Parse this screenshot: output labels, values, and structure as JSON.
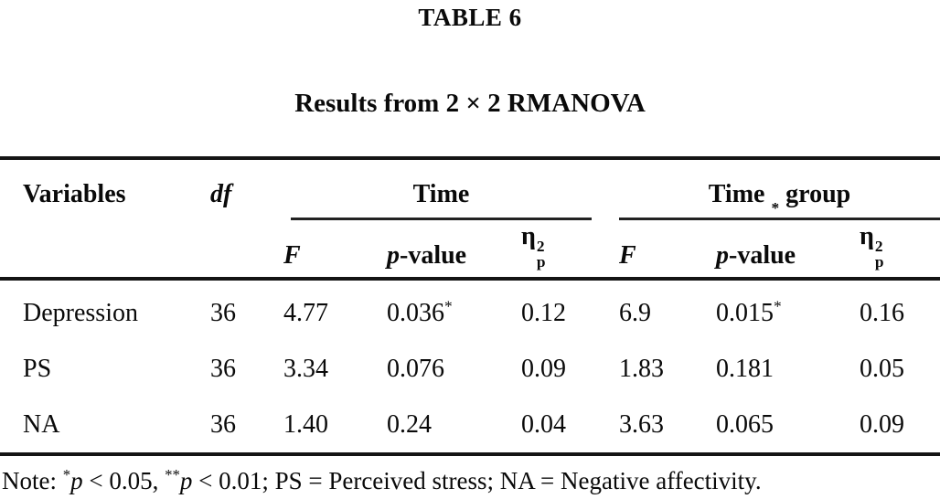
{
  "table_label": "TABLE 6",
  "table_title": "Results from 2 × 2 RMANOVA",
  "header": {
    "variables": "Variables",
    "df": "df",
    "time": "Time",
    "time_group": {
      "pre": "Time",
      "star": "*",
      "post": "group"
    },
    "sub": {
      "f": "F",
      "p_italic": "p",
      "p_rest": "-value",
      "eta": "η",
      "eta_sub": "p",
      "eta_sup": "2"
    }
  },
  "rows": [
    {
      "variable": "Depression",
      "df": "36",
      "time": {
        "f": "4.77",
        "p": "0.036",
        "p_star": "*",
        "eta": "0.12"
      },
      "time_group": {
        "f": "6.9",
        "p": "0.015",
        "p_star": "*",
        "eta": "0.16"
      }
    },
    {
      "variable": "PS",
      "df": "36",
      "time": {
        "f": "3.34",
        "p": "0.076",
        "p_star": "",
        "eta": "0.09"
      },
      "time_group": {
        "f": "1.83",
        "p": "0.181",
        "p_star": "",
        "eta": "0.05"
      }
    },
    {
      "variable": "NA",
      "df": "36",
      "time": {
        "f": "1.40",
        "p": "0.24",
        "p_star": "",
        "eta": "0.04"
      },
      "time_group": {
        "f": "3.63",
        "p": "0.065",
        "p_star": "",
        "eta": "0.09"
      }
    }
  ],
  "note": {
    "prefix": "Note: ",
    "sig1": {
      "star": "*",
      "p": "p",
      "rest": " < 0.05, "
    },
    "sig2": {
      "star": "**",
      "p": "p",
      "rest": " < 0.01; PS = Perceived stress; NA = Negative affectivity."
    }
  },
  "colors": {
    "text": "#0a0a0a",
    "background": "#ffffff",
    "rule": "#141414"
  }
}
